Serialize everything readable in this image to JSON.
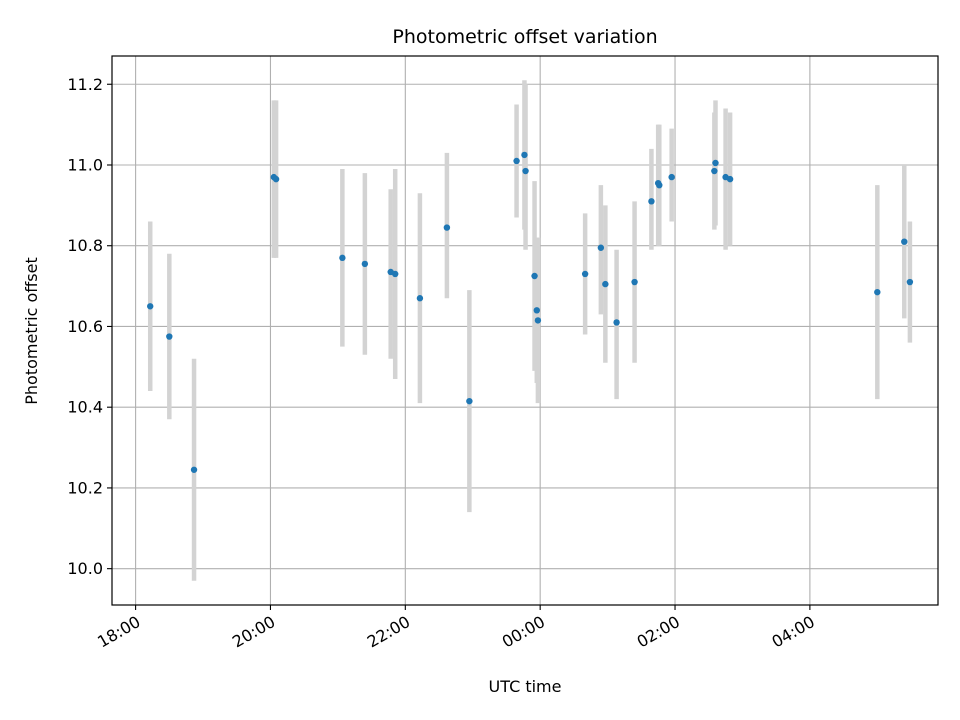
{
  "chart_data": {
    "type": "scatter",
    "title": "Photometric offset variation",
    "xlabel": "UTC time",
    "ylabel": "Photometric offset",
    "grid": true,
    "xlim_hours": [
      17.65,
      29.9
    ],
    "ylim": [
      9.91,
      11.27
    ],
    "x_ticks": [
      {
        "value": 18,
        "label": "18:00"
      },
      {
        "value": 20,
        "label": "20:00"
      },
      {
        "value": 22,
        "label": "22:00"
      },
      {
        "value": 24,
        "label": "00:00"
      },
      {
        "value": 26,
        "label": "02:00"
      },
      {
        "value": 28,
        "label": "04:00"
      }
    ],
    "y_ticks": [
      10.0,
      10.2,
      10.4,
      10.6,
      10.8,
      11.0,
      11.2
    ],
    "y_tick_labels": [
      "10.0",
      "10.2",
      "10.4",
      "10.6",
      "10.8",
      "11.0",
      "11.2"
    ],
    "colors": {
      "point": "#1f77b4",
      "errorbar": "#d3d3d3",
      "grid": "#b0b0b0"
    },
    "points": [
      {
        "t": "18:13",
        "y": 10.65,
        "lo": 10.44,
        "hi": 10.86
      },
      {
        "t": "18:30",
        "y": 10.575,
        "lo": 10.37,
        "hi": 10.78
      },
      {
        "t": "18:52",
        "y": 10.245,
        "lo": 9.97,
        "hi": 10.52
      },
      {
        "t": "20:03",
        "y": 10.97,
        "lo": 10.77,
        "hi": 11.16
      },
      {
        "t": "20:05",
        "y": 10.965,
        "lo": 10.77,
        "hi": 11.16
      },
      {
        "t": "21:04",
        "y": 10.77,
        "lo": 10.55,
        "hi": 10.99
      },
      {
        "t": "21:24",
        "y": 10.755,
        "lo": 10.53,
        "hi": 10.98
      },
      {
        "t": "21:47",
        "y": 10.735,
        "lo": 10.52,
        "hi": 10.94
      },
      {
        "t": "21:51",
        "y": 10.73,
        "lo": 10.47,
        "hi": 10.99
      },
      {
        "t": "22:13",
        "y": 10.67,
        "lo": 10.41,
        "hi": 10.93
      },
      {
        "t": "22:37",
        "y": 10.845,
        "lo": 10.67,
        "hi": 11.03
      },
      {
        "t": "22:57",
        "y": 10.415,
        "lo": 10.14,
        "hi": 10.69
      },
      {
        "t": "23:39",
        "y": 11.01,
        "lo": 10.87,
        "hi": 11.15
      },
      {
        "t": "23:46",
        "y": 11.025,
        "lo": 10.84,
        "hi": 11.21
      },
      {
        "t": "23:47",
        "y": 10.985,
        "lo": 10.79,
        "hi": 11.2
      },
      {
        "t": "23:55",
        "y": 10.725,
        "lo": 10.49,
        "hi": 10.96
      },
      {
        "t": "23:57",
        "y": 10.64,
        "lo": 10.46,
        "hi": 10.82
      },
      {
        "t": "23:58",
        "y": 10.615,
        "lo": 10.41,
        "hi": 10.82
      },
      {
        "t": "00:40",
        "y": 10.73,
        "lo": 10.58,
        "hi": 10.88
      },
      {
        "t": "00:54",
        "y": 10.795,
        "lo": 10.63,
        "hi": 10.95
      },
      {
        "t": "00:58",
        "y": 10.705,
        "lo": 10.51,
        "hi": 10.9
      },
      {
        "t": "01:08",
        "y": 10.61,
        "lo": 10.42,
        "hi": 10.79
      },
      {
        "t": "01:24",
        "y": 10.71,
        "lo": 10.51,
        "hi": 10.91
      },
      {
        "t": "01:39",
        "y": 10.91,
        "lo": 10.79,
        "hi": 11.04
      },
      {
        "t": "01:45",
        "y": 10.955,
        "lo": 10.8,
        "hi": 11.1
      },
      {
        "t": "01:46",
        "y": 10.95,
        "lo": 10.8,
        "hi": 11.1
      },
      {
        "t": "01:57",
        "y": 10.97,
        "lo": 10.86,
        "hi": 11.09
      },
      {
        "t": "02:35",
        "y": 10.985,
        "lo": 10.84,
        "hi": 11.13
      },
      {
        "t": "02:36",
        "y": 11.005,
        "lo": 10.85,
        "hi": 11.16
      },
      {
        "t": "02:45",
        "y": 10.97,
        "lo": 10.79,
        "hi": 11.14
      },
      {
        "t": "02:49",
        "y": 10.965,
        "lo": 10.8,
        "hi": 11.13
      },
      {
        "t": "05:00",
        "y": 10.685,
        "lo": 10.42,
        "hi": 10.95
      },
      {
        "t": "05:24",
        "y": 10.81,
        "lo": 10.62,
        "hi": 11.0
      },
      {
        "t": "05:29",
        "y": 10.71,
        "lo": 10.56,
        "hi": 10.86
      }
    ]
  }
}
